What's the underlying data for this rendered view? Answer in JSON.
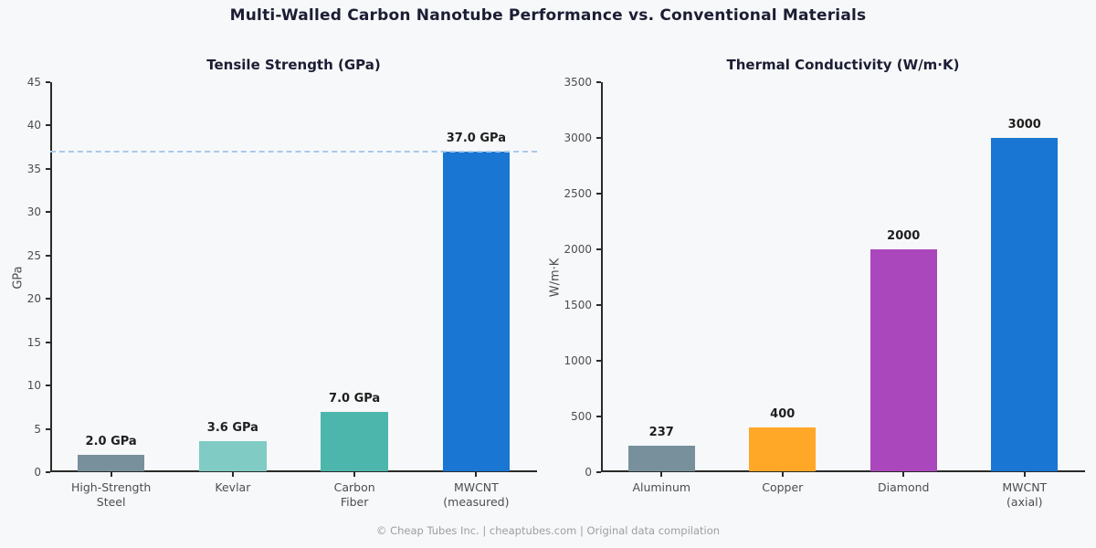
{
  "page": {
    "title": "Multi-Walled Carbon Nanotube Performance vs. Conventional Materials",
    "footer": "© Cheap Tubes Inc. | cheaptubes.com | Original data compilation",
    "background_color": "#f7f8fa",
    "title_color": "#1b1d33"
  },
  "chart_data": [
    {
      "type": "bar",
      "title": "Tensile Strength (GPa)",
      "ylabel": "GPa",
      "xlabel": "",
      "categories": [
        "High-Strength\nSteel",
        "Kevlar",
        "Carbon\nFiber",
        "MWCNT\n(measured)"
      ],
      "values": [
        2.0,
        3.6,
        7.0,
        37.0
      ],
      "value_labels": [
        "2.0 GPa",
        "3.6 GPa",
        "7.0 GPa",
        "37.0 GPa"
      ],
      "bar_colors": [
        "#78909c",
        "#80cbc4",
        "#4db6ac",
        "#1976d2"
      ],
      "ylim": [
        0,
        45
      ],
      "ytick_step": 5,
      "grid": false,
      "legend": null,
      "reference_line": {
        "value": 37.0,
        "color": "#a9c9ea",
        "style": "dashed"
      }
    },
    {
      "type": "bar",
      "title": "Thermal Conductivity (W/m·K)",
      "ylabel": "W/m·K",
      "xlabel": "",
      "categories": [
        "Aluminum",
        "Copper",
        "Diamond",
        "MWCNT\n(axial)"
      ],
      "values": [
        237,
        400,
        2000,
        3000
      ],
      "value_labels": [
        "237",
        "400",
        "2000",
        "3000"
      ],
      "bar_colors": [
        "#78909c",
        "#ffa726",
        "#ab47bc",
        "#1976d2"
      ],
      "ylim": [
        0,
        3500
      ],
      "ytick_step": 500,
      "grid": false,
      "legend": null,
      "reference_line": null
    }
  ]
}
